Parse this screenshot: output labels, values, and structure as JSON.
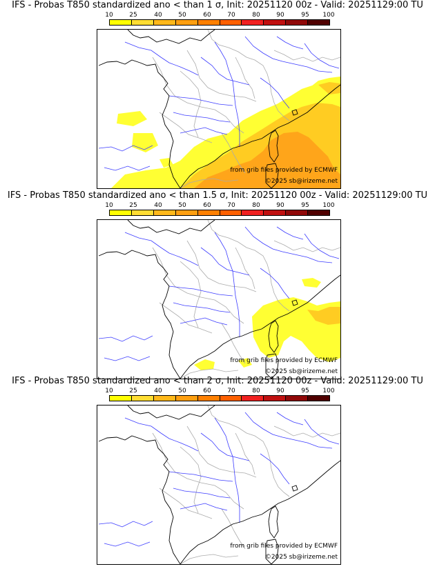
{
  "panels": [
    {
      "title": "IFS - Probas T850  standardized ano < than 1 σ, Init: 20251120 00z - Valid: 20251129:00 TU",
      "credit_source": "from grib files provided by ECMWF",
      "credit_copyright": "©2025 sb@irizeme.net",
      "anomaly_threshold_sigma": 1
    },
    {
      "title": "IFS - Probas T850  standardized ano < than 1.5 σ, Init: 20251120 00z - Valid: 20251129:00 TU",
      "credit_source": "from grib files provided by ECMWF",
      "credit_copyright": "©2025 sb@irizeme.net",
      "anomaly_threshold_sigma": 1.5
    },
    {
      "title": "IFS - Probas T850  standardized ano < than 2 σ, Init: 20251120 00z - Valid: 20251129:00 TU",
      "credit_source": "from grib files provided by ECMWF",
      "credit_copyright": "©2025 sb@irizeme.net",
      "anomaly_threshold_sigma": 2
    }
  ],
  "colorbar": {
    "ticks": [
      "10",
      "25",
      "40",
      "50",
      "60",
      "70",
      "80",
      "90",
      "95",
      "100"
    ],
    "colors": [
      "#ffff00",
      "#ffdd33",
      "#ffb81a",
      "#ff9f10",
      "#ff8000",
      "#ff6000",
      "#f02020",
      "#c01010",
      "#900808",
      "#500000"
    ]
  },
  "map_colors": {
    "coast": "#000000",
    "rivers": "#3a3aff",
    "borders": "#aaaaaa",
    "prob_low": "#ffff33",
    "prob_mid": "#ffcc22",
    "prob_high": "#ffa51a"
  }
}
